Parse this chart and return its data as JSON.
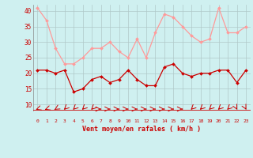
{
  "x": [
    0,
    1,
    2,
    3,
    4,
    5,
    6,
    7,
    8,
    9,
    10,
    11,
    12,
    13,
    14,
    15,
    16,
    17,
    18,
    19,
    20,
    21,
    22,
    23
  ],
  "wind_avg": [
    21,
    21,
    20,
    21,
    14,
    15,
    18,
    19,
    17,
    18,
    21,
    18,
    16,
    16,
    22,
    23,
    20,
    19,
    20,
    20,
    21,
    21,
    17,
    21
  ],
  "wind_gust": [
    41,
    37,
    28,
    23,
    23,
    25,
    28,
    28,
    30,
    27,
    25,
    31,
    25,
    33,
    39,
    38,
    35,
    32,
    30,
    31,
    41,
    33,
    33,
    35
  ],
  "bg_color": "#cff0f0",
  "grid_color": "#b0c8c8",
  "avg_color": "#cc0000",
  "gust_color": "#ff9999",
  "xlabel": "Vent moyen/en rafales ( km/h )",
  "xlabel_color": "#cc0000",
  "tick_color": "#cc0000",
  "ylim": [
    8,
    42
  ],
  "yticks": [
    10,
    15,
    20,
    25,
    30,
    35,
    40
  ],
  "arrow_color": "#cc0000"
}
